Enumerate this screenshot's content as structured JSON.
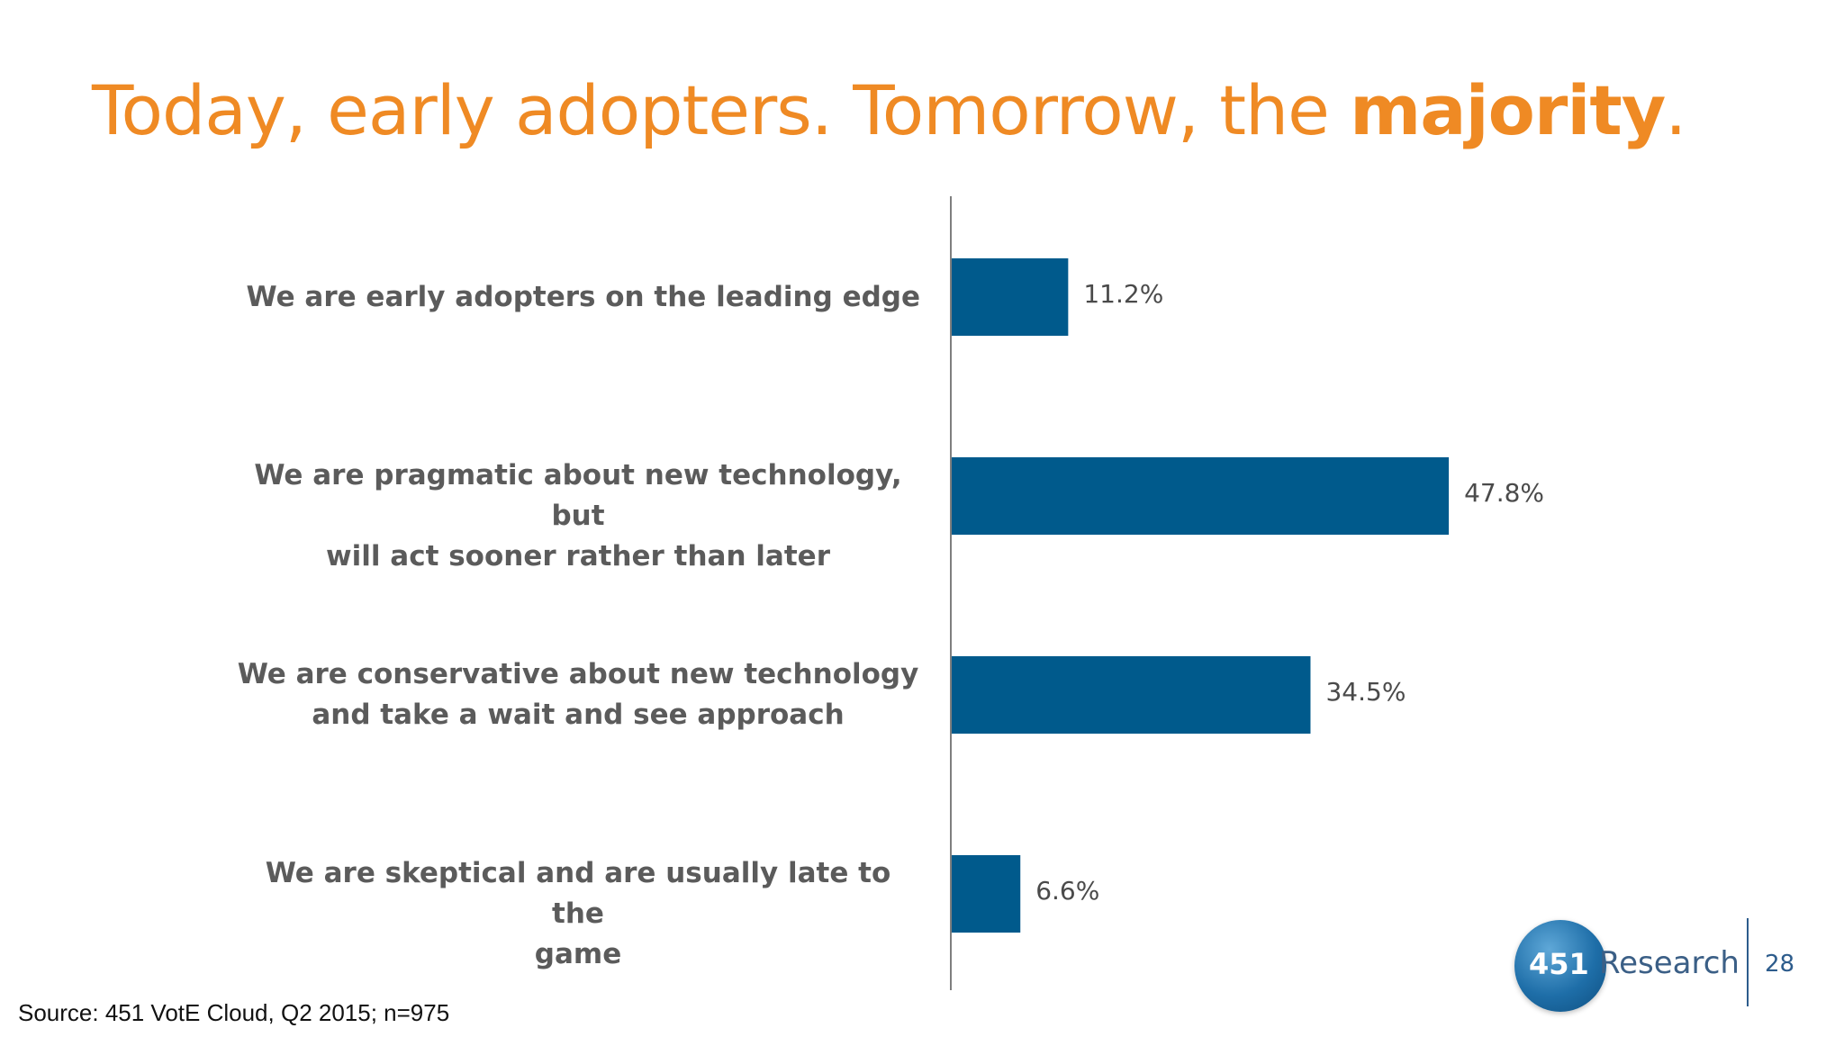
{
  "slide": {
    "title_prefix": "Today, early adopters. Tomorrow, the ",
    "title_emphasis": "majority",
    "title_suffix": ".",
    "title_color": "#ef8a24",
    "source": "Source: 451 VotE Cloud, Q2 2015; n=975",
    "logo_number": "451",
    "logo_word": "Research",
    "page_number": "28"
  },
  "chart_data": {
    "type": "bar",
    "orientation": "horizontal",
    "categories": [
      [
        "We are early adopters on the leading edge"
      ],
      [
        "We are pragmatic about new technology, but",
        "will act sooner rather than later"
      ],
      [
        "We are conservative about new technology",
        "and take a wait and see approach"
      ],
      [
        "We are skeptical and are usually late to the",
        "game"
      ]
    ],
    "values": [
      11.2,
      47.8,
      34.5,
      6.6
    ],
    "value_labels": [
      "11.2%",
      "47.8%",
      "34.5%",
      "6.6%"
    ],
    "bar_color": "#005a8c",
    "xlim": [
      0,
      100
    ],
    "grid": false,
    "legend": "none"
  }
}
